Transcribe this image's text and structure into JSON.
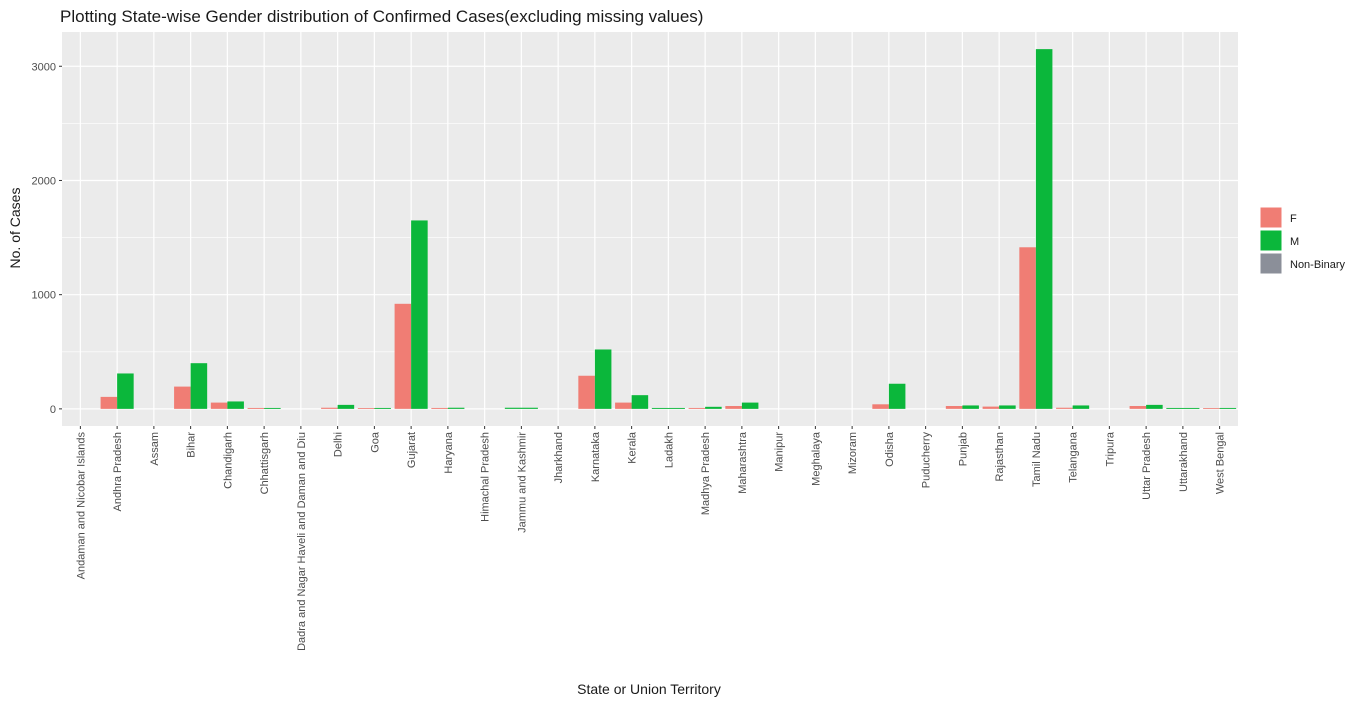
{
  "chart_data": {
    "type": "bar",
    "title": "Plotting State-wise Gender distribution of Confirmed Cases(excluding missing values)",
    "xlabel": "State or Union Territory",
    "ylabel": "No. of Cases",
    "ylim": [
      -150,
      3300
    ],
    "yticks": [
      0,
      1000,
      2000,
      3000
    ],
    "grid": true,
    "legend": {
      "position": "right",
      "entries": [
        "F",
        "M",
        "Non-Binary"
      ]
    },
    "colors": {
      "F": "#F07D74",
      "M": "#0BB73B",
      "Non-Binary": "#8B8F99",
      "panel": "#EBEBEB",
      "grid": "#FFFFFF"
    },
    "categories": [
      "Andaman and Nicobar Islands",
      "Andhra Pradesh",
      "Assam",
      "Bihar",
      "Chandigarh",
      "Chhattisgarh",
      "Dadra and Nagar Haveli and Daman and Diu",
      "Delhi",
      "Goa",
      "Gujarat",
      "Haryana",
      "Himachal Pradesh",
      "Jammu and Kashmir",
      "Jharkhand",
      "Karnataka",
      "Kerala",
      "Ladakh",
      "Madhya Pradesh",
      "Maharashtra",
      "Manipur",
      "Meghalaya",
      "Mizoram",
      "Odisha",
      "Puducherry",
      "Punjab",
      "Rajasthan",
      "Tamil Nadu",
      "Telangana",
      "Tripura",
      "Uttar Pradesh",
      "Uttarakhand",
      "West Bengal"
    ],
    "series": [
      {
        "name": "F",
        "values": [
          0,
          105,
          0,
          195,
          55,
          8,
          0,
          10,
          6,
          920,
          8,
          0,
          0,
          0,
          290,
          55,
          0,
          8,
          25,
          0,
          0,
          0,
          40,
          0,
          25,
          20,
          1415,
          10,
          0,
          25,
          0,
          6
        ]
      },
      {
        "name": "M",
        "values": [
          0,
          310,
          0,
          400,
          65,
          8,
          0,
          35,
          8,
          1650,
          10,
          0,
          10,
          0,
          520,
          120,
          8,
          18,
          55,
          0,
          0,
          0,
          220,
          0,
          30,
          30,
          3150,
          30,
          0,
          35,
          8,
          8
        ]
      },
      {
        "name": "Non-Binary",
        "values": [
          0,
          0,
          0,
          0,
          0,
          0,
          0,
          0,
          0,
          0,
          0,
          0,
          0,
          0,
          0,
          0,
          0,
          0,
          0,
          0,
          0,
          0,
          0,
          0,
          0,
          0,
          0,
          0,
          0,
          0,
          0,
          0
        ]
      }
    ]
  }
}
